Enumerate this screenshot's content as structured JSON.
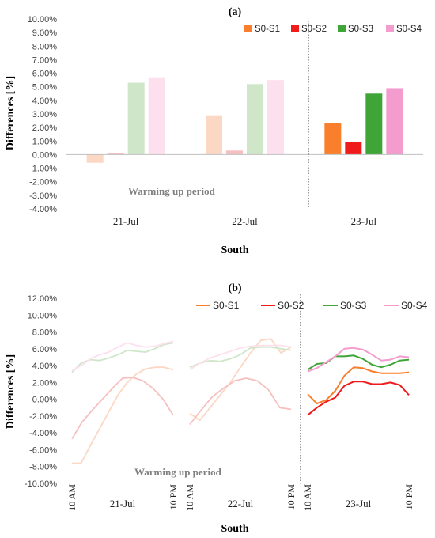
{
  "chart_data": [
    {
      "panel_label": "(a)",
      "type": "bar",
      "categories": [
        "21-Jul",
        "22-Jul",
        "23-Jul"
      ],
      "series": [
        {
          "name": "S0-S1",
          "values": [
            -0.6,
            2.9,
            2.3
          ]
        },
        {
          "name": "S0-S2",
          "values": [
            0.1,
            0.3,
            0.9
          ]
        },
        {
          "name": "S0-S3",
          "values": [
            5.3,
            5.2,
            4.5
          ]
        },
        {
          "name": "S0-S4",
          "values": [
            5.7,
            5.5,
            4.9
          ]
        }
      ],
      "ylabel": "Differences [%]",
      "xlabel": "South",
      "ylim": [
        -4,
        10
      ],
      "yticks": [
        "10.00%",
        "9.00%",
        "8.00%",
        "7.00%",
        "6.00%",
        "5.00%",
        "4.00%",
        "3.00%",
        "2.00%",
        "1.00%",
        "0.00%",
        "-1.00%",
        "-2.00%",
        "-3.00%",
        "-4.00%"
      ],
      "annotation": "Warming up period",
      "legend": "top-right",
      "grid": false
    },
    {
      "panel_label": "(b)",
      "type": "line",
      "day_labels": [
        "21-Jul",
        "22-Jul",
        "23-Jul"
      ],
      "x_tick_labels": [
        "10 AM",
        "10 PM",
        "10 AM",
        "10 PM",
        "10 AM",
        "10 PM"
      ],
      "series": [
        {
          "name": "S0-S1",
          "days": [
            [
              -7.6,
              -7.6,
              -5.5,
              -3.5,
              -1.5,
              0.5,
              2.0,
              3.0,
              3.6,
              3.8,
              3.8,
              3.5
            ],
            [
              -1.7,
              -2.5,
              -1.0,
              0.5,
              2.0,
              3.8,
              5.5,
              7.0,
              7.2,
              5.5,
              6.2
            ],
            [
              0.6,
              -0.5,
              -0.1,
              1.0,
              2.8,
              3.8,
              3.7,
              3.3,
              3.1,
              3.1,
              3.1,
              3.2
            ]
          ]
        },
        {
          "name": "S0-S2",
          "days": [
            [
              -4.7,
              -2.7,
              -1.3,
              0.0,
              1.3,
              2.5,
              2.6,
              2.2,
              1.3,
              0.0,
              -1.9
            ],
            [
              -3.0,
              -1.3,
              0.3,
              1.3,
              2.2,
              2.5,
              2.2,
              1.1,
              -1.0,
              -1.2
            ],
            [
              -1.9,
              -1.0,
              -0.3,
              0.2,
              1.6,
              2.1,
              2.1,
              1.8,
              1.8,
              2.0,
              1.7,
              0.5
            ]
          ]
        },
        {
          "name": "S0-S3",
          "days": [
            [
              3.2,
              4.3,
              4.7,
              4.6,
              4.9,
              5.3,
              5.8,
              5.7,
              5.6,
              6.0,
              6.5,
              6.7
            ],
            [
              3.8,
              4.3,
              4.6,
              4.5,
              4.8,
              5.3,
              6.1,
              6.2,
              6.2,
              6.0,
              5.8
            ],
            [
              3.5,
              4.2,
              4.3,
              5.1,
              5.1,
              5.2,
              4.8,
              4.1,
              3.8,
              4.1,
              4.6,
              4.7
            ]
          ]
        },
        {
          "name": "S0-S4",
          "days": [
            [
              3.4,
              4.0,
              4.8,
              5.3,
              5.6,
              6.2,
              6.7,
              6.4,
              6.2,
              6.3,
              6.6,
              6.9
            ],
            [
              3.5,
              4.3,
              4.9,
              5.3,
              5.7,
              6.1,
              6.3,
              6.4,
              6.4,
              6.4,
              6.2
            ],
            [
              3.3,
              3.7,
              4.4,
              5.1,
              6.0,
              6.1,
              5.9,
              5.3,
              4.6,
              4.7,
              5.1,
              5.0
            ]
          ]
        }
      ],
      "ylabel": "Differences [%]",
      "xlabel": "South",
      "ylim": [
        -10,
        12
      ],
      "yticks": [
        "12.00%",
        "10.00%",
        "8.00%",
        "6.00%",
        "4.00%",
        "2.00%",
        "0.00%",
        "-2.00%",
        "-4.00%",
        "-6.00%",
        "-8.00%",
        "-10.00%"
      ],
      "annotation": "Warming up period",
      "legend": "top",
      "grid": false
    }
  ],
  "colors": {
    "S0-S1": "#f97f2d",
    "S0-S2": "#f01b1b",
    "S0-S3": "#3ea536",
    "S0-S4": "#f59ccf",
    "S0-S1-faded": "#fbd7c4",
    "S0-S2-faded": "#f6c0c0",
    "S0-S3-faded": "#cfe6c9",
    "S0-S4-faded": "#fde0ee"
  }
}
